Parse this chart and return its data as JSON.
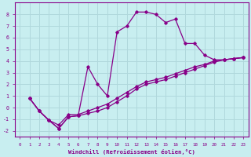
{
  "xlabel": "Windchill (Refroidissement éolien,°C)",
  "background_color": "#c8eef0",
  "grid_color": "#b0d8dc",
  "line_color": "#880088",
  "xlim": [
    -0.5,
    23.5
  ],
  "ylim": [
    -2.5,
    9.0
  ],
  "xticks": [
    0,
    1,
    2,
    3,
    4,
    5,
    6,
    7,
    8,
    9,
    10,
    11,
    12,
    13,
    14,
    15,
    16,
    17,
    18,
    19,
    20,
    21,
    22,
    23
  ],
  "yticks": [
    -2,
    -1,
    0,
    1,
    2,
    3,
    4,
    5,
    6,
    7,
    8
  ],
  "line1_x": [
    1,
    2,
    3,
    4,
    5,
    6,
    7,
    8,
    9,
    10,
    11,
    12,
    13,
    14,
    15,
    16,
    17,
    18,
    19,
    20,
    21,
    22,
    23
  ],
  "line1_y": [
    0.8,
    -0.3,
    -1.1,
    -1.8,
    -0.8,
    -0.7,
    3.5,
    2.0,
    1.0,
    6.5,
    7.0,
    8.2,
    8.2,
    8.0,
    7.3,
    7.6,
    5.5,
    5.5,
    4.5,
    4.1,
    4.1,
    4.2,
    4.3
  ],
  "line2_x": [
    1,
    2,
    3,
    4,
    5,
    6,
    7,
    8,
    9,
    10,
    11,
    12,
    13,
    14,
    15,
    16,
    17,
    18,
    19,
    20,
    21,
    22,
    23
  ],
  "line2_y": [
    0.8,
    -0.3,
    -1.1,
    -1.8,
    -0.8,
    -0.7,
    -0.5,
    -0.3,
    0.0,
    0.5,
    1.0,
    1.6,
    2.0,
    2.2,
    2.4,
    2.7,
    3.0,
    3.3,
    3.6,
    3.9,
    4.1,
    4.2,
    4.3
  ],
  "line3_x": [
    1,
    2,
    3,
    4,
    5,
    6,
    7,
    8,
    9,
    10,
    11,
    12,
    13,
    14,
    15,
    16,
    17,
    18,
    19,
    20,
    21,
    22,
    23
  ],
  "line3_y": [
    0.8,
    -0.3,
    -1.1,
    -1.5,
    -0.6,
    -0.6,
    -0.3,
    0.0,
    0.3,
    0.8,
    1.3,
    1.8,
    2.2,
    2.4,
    2.6,
    2.9,
    3.2,
    3.5,
    3.7,
    4.0,
    4.1,
    4.2,
    4.3
  ]
}
